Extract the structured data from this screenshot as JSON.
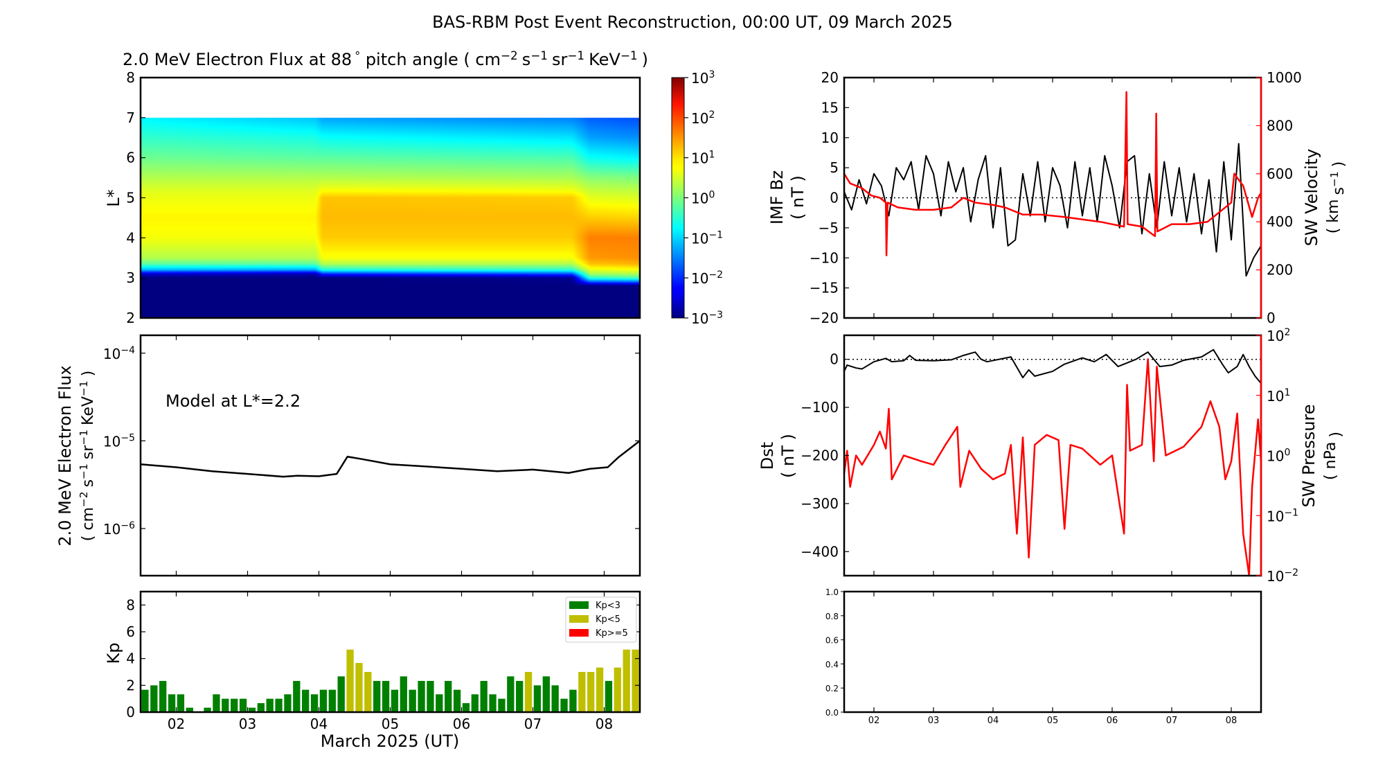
{
  "title": "BAS-RBM Post Event Reconstruction, 00:00 UT, 09 March 2025",
  "xaxis": {
    "label": "March 2025 (UT)",
    "xlim_day_of_march": [
      1.5,
      8.5
    ],
    "ticks": [
      2,
      3,
      4,
      5,
      6,
      7,
      8
    ],
    "tick_labels": [
      "02",
      "03",
      "04",
      "05",
      "06",
      "07",
      "08"
    ]
  },
  "colors": {
    "red": "#ff0000",
    "kp_low": "#008000",
    "kp_mid": "#bfbf00",
    "kp_high": "#ff0000",
    "line": "#000000"
  },
  "chart_data": [
    {
      "type": "heatmap",
      "title_prefix": "2.0 MeV Electron Flux at 88",
      "title_degree": "°",
      "title_mid": " pitch angle ( ",
      "title_units": [
        {
          "base": "cm",
          "exp": "−2"
        },
        {
          "base": "s",
          "exp": "−1"
        },
        {
          "base": "sr",
          "exp": "−1"
        },
        {
          "base": "KeV",
          "exp": "−1"
        }
      ],
      "title_suffix": ")",
      "ylabel": "L*",
      "ylim": [
        2,
        8
      ],
      "yticks": [
        2,
        3,
        4,
        5,
        6,
        7,
        8
      ],
      "ytick_labels": [
        "2",
        "3",
        "4",
        "5",
        "6",
        "7",
        "8"
      ],
      "colormap": "jet",
      "color_scale": "log",
      "clim_log10": [
        -3,
        3
      ],
      "colorbar_ticks": [
        {
          "base": "10",
          "exp": "−3"
        },
        {
          "base": "10",
          "exp": "−2"
        },
        {
          "base": "10",
          "exp": "−1"
        },
        {
          "base": "10",
          "exp": "0"
        },
        {
          "base": "10",
          "exp": "1"
        },
        {
          "base": "10",
          "exp": "2"
        },
        {
          "base": "10",
          "exp": "3"
        }
      ],
      "data_max_L": 7,
      "L_grid": [
        2,
        2.8,
        3.0,
        3.1,
        3.2,
        3.35,
        3.5,
        4.0,
        4.5,
        5.0,
        5.2,
        5.5,
        6.0,
        6.5,
        7.0
      ],
      "columns": [
        {
          "day": 1.5,
          "log10_flux": [
            -3,
            -3,
            -3,
            -2.5,
            -1.2,
            -0.2,
            0.3,
            0.7,
            0.8,
            0.65,
            0.55,
            0.3,
            -0.1,
            -0.45,
            -0.8
          ]
        },
        {
          "day": 3.95,
          "log10_flux": [
            -3,
            -3,
            -3,
            -2.7,
            -1.3,
            -0.2,
            0.3,
            0.7,
            0.8,
            0.65,
            0.55,
            0.3,
            -0.2,
            -0.6,
            -1.1
          ]
        },
        {
          "day": 4.05,
          "log10_flux": [
            -3,
            -3,
            -3,
            -2.0,
            -0.6,
            0.3,
            0.7,
            1.05,
            1.15,
            1.1,
            0.7,
            0.3,
            -0.2,
            -0.7,
            -1.3
          ]
        },
        {
          "day": 7.55,
          "log10_flux": [
            -3,
            -3,
            -2.9,
            -1.8,
            -0.5,
            0.3,
            0.7,
            1.05,
            1.15,
            1.05,
            0.65,
            0.25,
            -0.3,
            -0.9,
            -1.5
          ]
        },
        {
          "day": 7.8,
          "log10_flux": [
            -3,
            -3,
            -0.5,
            0.2,
            0.6,
            1.1,
            1.35,
            1.5,
            1.05,
            0.6,
            0.4,
            0.05,
            -0.7,
            -1.3,
            -1.7
          ]
        },
        {
          "day": 8.5,
          "log10_flux": [
            -3,
            -3,
            -0.3,
            0.3,
            0.7,
            1.2,
            1.4,
            1.5,
            1.0,
            0.55,
            0.35,
            0.0,
            -0.8,
            -1.4,
            -1.8
          ]
        }
      ]
    },
    {
      "type": "line",
      "annotation": "Model at L*=2.2",
      "ylabel_line1": "2.0 MeV Electron Flux",
      "ylabel_units": [
        {
          "base": "cm",
          "exp": "−2"
        },
        {
          "base": "s",
          "exp": "−1"
        },
        {
          "base": "sr",
          "exp": "−1"
        },
        {
          "base": "KeV",
          "exp": "−1"
        }
      ],
      "yscale": "log",
      "ylim": [
        2.9e-07,
        0.00016
      ],
      "yticks": [
        0.0001,
        1e-05,
        1e-06
      ],
      "ytick_labels": [
        {
          "base": "10",
          "exp": "−4"
        },
        {
          "base": "10",
          "exp": "−5"
        },
        {
          "base": "10",
          "exp": "−6"
        }
      ],
      "x": [
        1.5,
        2.0,
        2.5,
        3.0,
        3.5,
        3.7,
        4.0,
        4.25,
        4.4,
        4.6,
        5.0,
        5.5,
        6.0,
        6.5,
        7.0,
        7.5,
        7.8,
        8.05,
        8.2,
        8.5
      ],
      "y": [
        5.4e-06,
        5e-06,
        4.5e-06,
        4.2e-06,
        3.9e-06,
        4e-06,
        3.95e-06,
        4.2e-06,
        6.6e-06,
        6.2e-06,
        5.4e-06,
        5.1e-06,
        4.8e-06,
        4.5e-06,
        4.7e-06,
        4.3e-06,
        4.8e-06,
        5e-06,
        6.5e-06,
        1e-05
      ]
    },
    {
      "type": "bar",
      "ylabel": "Kp",
      "ylim": [
        0,
        9
      ],
      "yticks": [
        0,
        2,
        4,
        6,
        8
      ],
      "ytick_labels": [
        "0",
        "2",
        "4",
        "6",
        "8"
      ],
      "legend": [
        {
          "label": "Kp<3",
          "color": "#008000"
        },
        {
          "label": "Kp<5",
          "color": "#bfbf00"
        },
        {
          "label": "Kp>=5",
          "color": "#ff0000"
        }
      ],
      "legend_position": "upper-right",
      "bar_hours": 3,
      "start_day": 1.5,
      "values": [
        1.67,
        2,
        2.33,
        1.33,
        1.33,
        0.33,
        0,
        0.33,
        1.33,
        1,
        1,
        1,
        0.33,
        0.67,
        1,
        1,
        1.33,
        2.33,
        1.67,
        1.33,
        1.67,
        1.67,
        2.67,
        4.67,
        3.67,
        3,
        2.33,
        2.33,
        1.67,
        2.67,
        1.67,
        2.33,
        2.33,
        1.33,
        2.33,
        1.67,
        0.67,
        1.33,
        2.33,
        1.33,
        1,
        2.67,
        2.33,
        3,
        2,
        2.67,
        2,
        1,
        1.67,
        3,
        3,
        3.33,
        2.33,
        3.33,
        4.67,
        4.67
      ]
    },
    {
      "type": "line",
      "left": {
        "ylabel_line1": "IMF Bz",
        "ylabel_line2": "( nT )",
        "ylim": [
          -20,
          20
        ],
        "yticks": [
          20,
          15,
          10,
          5,
          0,
          -5,
          -10,
          -15,
          -20
        ],
        "ytick_labels": [
          "20",
          "15",
          "10",
          "5",
          "0",
          "−5",
          "−10",
          "−15",
          "−20"
        ],
        "x_start": 1.5,
        "x_step_hours": 3,
        "y": [
          1,
          -2,
          3,
          -1,
          4,
          2,
          -3,
          5,
          3,
          6,
          -2,
          7,
          4,
          -3,
          6,
          1,
          5,
          -4,
          3,
          7,
          -5,
          5,
          -8,
          -7,
          4,
          -3,
          6,
          -4,
          5,
          2,
          -5,
          6,
          -3,
          5,
          -4,
          7,
          2,
          -5,
          6,
          7,
          -6,
          4,
          -5,
          6,
          -3,
          5,
          -4,
          4,
          -6,
          3,
          -9,
          6,
          -7,
          9,
          -13,
          -10,
          -8
        ]
      },
      "right": {
        "ylabel": "SW Velocity",
        "ylabel_units": [
          {
            "base": "km",
            "exp": ""
          },
          {
            "base": "s",
            "exp": "−1"
          }
        ],
        "ylim": [
          0,
          1000
        ],
        "yticks": [
          0,
          200,
          400,
          600,
          800,
          1000
        ],
        "ytick_labels": [
          "0",
          "200",
          "400",
          "600",
          "800",
          "1000"
        ],
        "points": [
          [
            1.5,
            600
          ],
          [
            1.6,
            560
          ],
          [
            1.8,
            540
          ],
          [
            1.95,
            510
          ],
          [
            2.1,
            500
          ],
          [
            2.2,
            480
          ],
          [
            2.21,
            260
          ],
          [
            2.23,
            480
          ],
          [
            2.4,
            460
          ],
          [
            2.7,
            450
          ],
          [
            3.0,
            450
          ],
          [
            3.3,
            460
          ],
          [
            3.5,
            500
          ],
          [
            3.7,
            480
          ],
          [
            4.0,
            470
          ],
          [
            4.2,
            460
          ],
          [
            4.5,
            430
          ],
          [
            4.8,
            430
          ],
          [
            5.2,
            420
          ],
          [
            5.5,
            410
          ],
          [
            5.8,
            400
          ],
          [
            6.0,
            390
          ],
          [
            6.2,
            380
          ],
          [
            6.24,
            940
          ],
          [
            6.26,
            390
          ],
          [
            6.5,
            380
          ],
          [
            6.72,
            340
          ],
          [
            6.74,
            850
          ],
          [
            6.76,
            360
          ],
          [
            7.0,
            390
          ],
          [
            7.3,
            390
          ],
          [
            7.6,
            400
          ],
          [
            7.8,
            440
          ],
          [
            8.0,
            480
          ],
          [
            8.05,
            600
          ],
          [
            8.2,
            550
          ],
          [
            8.35,
            420
          ],
          [
            8.45,
            500
          ],
          [
            8.5,
            520
          ]
        ]
      }
    },
    {
      "type": "line",
      "left": {
        "ylabel_line1": "Dst",
        "ylabel_line2": "( nT )",
        "ylim": [
          -450,
          50
        ],
        "yticks": [
          0,
          -100,
          -200,
          -300,
          -400
        ],
        "ytick_labels": [
          "0",
          "−100",
          "−200",
          "−300",
          "−400"
        ],
        "points": [
          [
            1.5,
            -25
          ],
          [
            1.55,
            -12
          ],
          [
            1.7,
            -18
          ],
          [
            1.8,
            -20
          ],
          [
            2.0,
            -5
          ],
          [
            2.2,
            2
          ],
          [
            2.3,
            -5
          ],
          [
            2.5,
            -3
          ],
          [
            2.6,
            8
          ],
          [
            2.7,
            -2
          ],
          [
            3.0,
            -3
          ],
          [
            3.3,
            -1
          ],
          [
            3.5,
            8
          ],
          [
            3.7,
            15
          ],
          [
            3.8,
            0
          ],
          [
            3.9,
            -5
          ],
          [
            4.3,
            5
          ],
          [
            4.5,
            -38
          ],
          [
            4.6,
            -22
          ],
          [
            4.7,
            -35
          ],
          [
            5.0,
            -25
          ],
          [
            5.2,
            -10
          ],
          [
            5.5,
            3
          ],
          [
            5.7,
            -5
          ],
          [
            5.9,
            10
          ],
          [
            6.1,
            -15
          ],
          [
            6.4,
            0
          ],
          [
            6.6,
            15
          ],
          [
            6.8,
            -15
          ],
          [
            7.0,
            -12
          ],
          [
            7.2,
            -2
          ],
          [
            7.5,
            5
          ],
          [
            7.7,
            20
          ],
          [
            7.85,
            -10
          ],
          [
            7.95,
            -28
          ],
          [
            8.1,
            -15
          ],
          [
            8.2,
            10
          ],
          [
            8.3,
            -15
          ],
          [
            8.4,
            -35
          ],
          [
            8.5,
            -50
          ]
        ]
      },
      "right": {
        "ylabel": "SW Pressure",
        "ylabel_units": [
          {
            "base": "nPa",
            "exp": ""
          }
        ],
        "yscale": "log",
        "ylim": [
          0.01,
          100
        ],
        "yticks": [
          0.01,
          0.1,
          1,
          10,
          100
        ],
        "ytick_labels": [
          {
            "base": "10",
            "exp": "−2"
          },
          {
            "base": "10",
            "exp": "−1"
          },
          {
            "base": "10",
            "exp": "0"
          },
          {
            "base": "10",
            "exp": "1"
          },
          {
            "base": "10",
            "exp": "2"
          }
        ],
        "points": [
          [
            1.5,
            0.5
          ],
          [
            1.55,
            1.2
          ],
          [
            1.6,
            0.3
          ],
          [
            1.7,
            1.0
          ],
          [
            1.8,
            0.7
          ],
          [
            2.0,
            1.5
          ],
          [
            2.1,
            2.5
          ],
          [
            2.2,
            1.3
          ],
          [
            2.25,
            6
          ],
          [
            2.3,
            0.4
          ],
          [
            2.5,
            1.0
          ],
          [
            2.8,
            0.8
          ],
          [
            3.0,
            0.7
          ],
          [
            3.2,
            1.5
          ],
          [
            3.4,
            3
          ],
          [
            3.45,
            0.3
          ],
          [
            3.6,
            1.2
          ],
          [
            3.8,
            0.6
          ],
          [
            4.0,
            0.4
          ],
          [
            4.2,
            0.5
          ],
          [
            4.3,
            1.5
          ],
          [
            4.4,
            0.05
          ],
          [
            4.5,
            2
          ],
          [
            4.6,
            0.02
          ],
          [
            4.7,
            1.5
          ],
          [
            4.9,
            2.2
          ],
          [
            5.1,
            1.8
          ],
          [
            5.2,
            0.06
          ],
          [
            5.3,
            1.5
          ],
          [
            5.5,
            1.3
          ],
          [
            5.8,
            0.7
          ],
          [
            6.0,
            1.0
          ],
          [
            6.2,
            0.05
          ],
          [
            6.25,
            15
          ],
          [
            6.3,
            1.2
          ],
          [
            6.5,
            1.5
          ],
          [
            6.6,
            40
          ],
          [
            6.7,
            0.8
          ],
          [
            6.75,
            30
          ],
          [
            6.9,
            1.0
          ],
          [
            7.2,
            1.4
          ],
          [
            7.5,
            3
          ],
          [
            7.65,
            8
          ],
          [
            7.8,
            3
          ],
          [
            7.9,
            0.4
          ],
          [
            8.0,
            0.8
          ],
          [
            8.1,
            5
          ],
          [
            8.2,
            0.05
          ],
          [
            8.3,
            0.01
          ],
          [
            8.35,
            0.3
          ],
          [
            8.45,
            4
          ],
          [
            8.5,
            0.8
          ]
        ]
      }
    },
    {
      "type": "line",
      "empty": true,
      "ylim": [
        0,
        1
      ],
      "yticks": [
        0,
        0.2,
        0.4,
        0.6,
        0.8,
        1.0
      ],
      "ytick_labels": [
        "0.0",
        "0.2",
        "0.4",
        "0.6",
        "0.8",
        "1.0"
      ]
    }
  ]
}
